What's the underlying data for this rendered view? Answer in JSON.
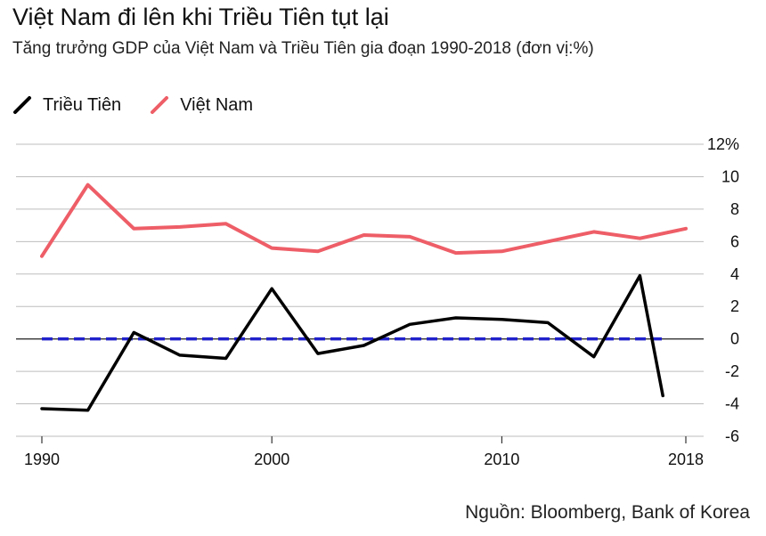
{
  "title": "Việt Nam đi lên khi Triều Tiên tụt lại",
  "subtitle": "Tăng trưởng GDP của Việt Nam và Triều Tiên gia đoạn 1990-2018 (đơn vị:%)",
  "source": "Nguồn: Bloomberg, Bank of Korea",
  "chart_data": {
    "type": "line",
    "title": "Việt Nam đi lên khi Triều Tiên tụt lại",
    "subtitle": "Tăng trưởng GDP của Việt Nam và Triều Tiên gia đoạn 1990-2018 (đơn vị:%)",
    "xlabel": "",
    "ylabel": "",
    "x_ticks": [
      1990,
      2000,
      2010,
      2018
    ],
    "y_ticks": [
      -6,
      -4,
      -2,
      0,
      2,
      4,
      6,
      8,
      10,
      12
    ],
    "y_tick_labels": [
      "-6",
      "-4",
      "-2",
      "0",
      "2",
      "4",
      "6",
      "8",
      "10",
      "12%"
    ],
    "xlim": [
      1990,
      2018
    ],
    "ylim": [
      -6,
      12
    ],
    "grid": "horizontal",
    "legend": "top-left",
    "series": [
      {
        "name": "Triều Tiên",
        "color": "#000000",
        "x": [
          1990,
          1992,
          1994,
          1996,
          1998,
          2000,
          2002,
          2004,
          2006,
          2008,
          2010,
          2012,
          2014,
          2016,
          2017
        ],
        "values": [
          -4.3,
          -4.4,
          0.4,
          -1.0,
          -1.2,
          3.1,
          -0.9,
          -0.4,
          0.9,
          1.3,
          1.2,
          1.0,
          -1.1,
          3.9,
          -3.5
        ]
      },
      {
        "name": "Việt Nam",
        "color": "#ee5e67",
        "x": [
          1990,
          1992,
          1994,
          1996,
          1998,
          2000,
          2002,
          2004,
          2006,
          2008,
          2010,
          2012,
          2014,
          2016,
          2018
        ],
        "values": [
          5.1,
          9.5,
          6.8,
          6.9,
          7.1,
          5.6,
          5.4,
          6.4,
          6.3,
          5.3,
          5.4,
          6.0,
          6.6,
          6.2,
          6.8
        ]
      }
    ],
    "reference_line": {
      "y": 0,
      "color": "#2222cc",
      "style": "dashed",
      "x": [
        1990,
        2017
      ]
    }
  }
}
